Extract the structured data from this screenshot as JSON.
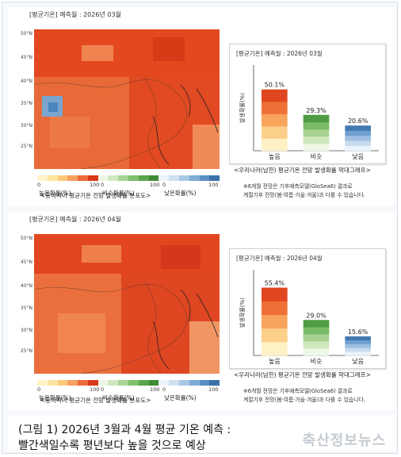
{
  "colors": {
    "above": "#e8441c",
    "normal": "#5fae45",
    "below": "#4a86c0"
  },
  "scale": {
    "ticks": [
      "0",
      "100",
      "0",
      "100",
      "0",
      "100"
    ],
    "labels": [
      "높은확률(%)",
      "비슷확률(%)",
      "낮은확률(%)"
    ]
  },
  "panels": [
    {
      "header": "[평균기온] 예측월 : 2026년 03월",
      "latitudes": [
        "50°N",
        "45°N",
        "40°N",
        "35°N",
        "30°N",
        "25°N"
      ],
      "map_caption": "<동아시아 평균기온 전망 발생확률 분포도>",
      "chart_caption": "<우리나라(남한) 평균기온 전망 발생확률 막대그래프>",
      "note_line1": "※6개월 전망은 기후예측모델(GloSea6) 결과로",
      "note_line2": "계절기후 전망(봄·여름·가을·겨울)과 다를 수 있습니다."
    },
    {
      "header": "[평균기온] 예측월 : 2026년 04월",
      "latitudes": [
        "50°N",
        "45°N",
        "40°N",
        "35°N",
        "30°N",
        "25°N"
      ],
      "map_caption": "<동아시아 평균기온 전망 발생확률 분포도>",
      "chart_caption": "<우리나라(남한) 평균기온 전망 발생확률 막대그래프>",
      "note_line1": "※6개월 전망은 기후예측모델(GloSea6) 결과로",
      "note_line2": "계절기후 전망(봄·여름·가을·겨울)과 다를 수 있습니다."
    }
  ],
  "chart_data": [
    {
      "type": "bar",
      "title": "[평균기온] 예측월 : 2026년 03월",
      "ylabel": "발생확률(%)",
      "categories": [
        "높음",
        "비슷",
        "낮음"
      ],
      "values": [
        50.1,
        29.3,
        20.6
      ],
      "value_labels": [
        "50.1%",
        "29.3%",
        "20.6%"
      ],
      "ylim": [
        0,
        70
      ]
    },
    {
      "type": "bar",
      "title": "[평균기온] 예측월 : 2026년 04월",
      "ylabel": "발생확률(%)",
      "categories": [
        "높음",
        "비슷",
        "낮음"
      ],
      "values": [
        55.4,
        29.0,
        15.6
      ],
      "value_labels": [
        "55.4%",
        "29.0%",
        "15.6%"
      ],
      "ylim": [
        0,
        70
      ]
    }
  ],
  "caption": {
    "line1": "(그림 1) 2026년 3월과 4월 평균 기온 예측 :",
    "line2": "빨간색일수록 평년보다 높을 것으로 예상"
  },
  "watermark": "축산정보뉴스"
}
